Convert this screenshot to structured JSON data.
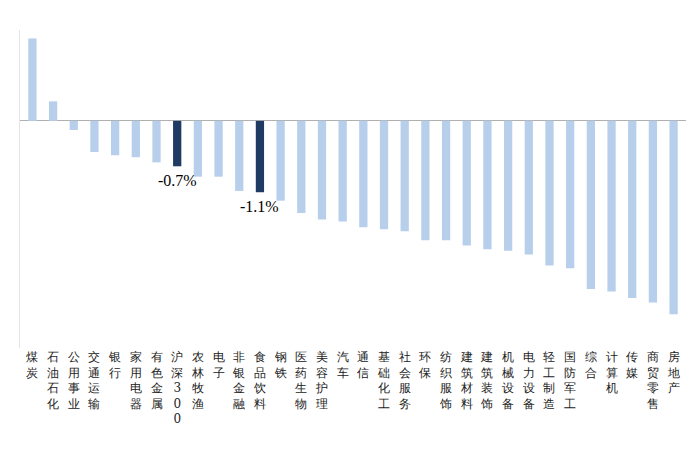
{
  "chart_data": {
    "type": "bar",
    "categories": [
      "煤炭",
      "石油石化",
      "公用事业",
      "交通运输",
      "银行",
      "家用电器",
      "有色金属",
      "沪深300",
      "农林牧渔",
      "电子",
      "非银金融",
      "食品饮料",
      "钢铁",
      "医药生物",
      "美容护理",
      "汽车",
      "通信",
      "基础化工",
      "社会服务",
      "环保",
      "纺织服饰",
      "建筑材料",
      "建筑装饰",
      "机械设备",
      "电力设备",
      "轻工制造",
      "国防军工",
      "综合",
      "计算机",
      "传媒",
      "商贸零售",
      "房地产"
    ],
    "values": [
      1.27,
      0.3,
      -0.14,
      -0.48,
      -0.53,
      -0.56,
      -0.64,
      -0.7,
      -0.86,
      -0.86,
      -1.08,
      -1.1,
      -1.23,
      -1.42,
      -1.52,
      -1.55,
      -1.64,
      -1.67,
      -1.7,
      -1.84,
      -1.84,
      -1.92,
      -1.98,
      -2.0,
      -2.06,
      -2.23,
      -2.27,
      -2.59,
      -2.63,
      -2.73,
      -2.8,
      -2.98
    ],
    "value_labels": [
      null,
      null,
      null,
      null,
      null,
      null,
      null,
      "-0.7%",
      null,
      null,
      null,
      "-1.1%",
      null,
      null,
      null,
      null,
      null,
      null,
      null,
      null,
      null,
      null,
      null,
      null,
      null,
      null,
      null,
      null,
      null,
      null,
      null,
      null
    ],
    "colors": [
      "#b7cfeb",
      "#b7cfeb",
      "#b7cfeb",
      "#b7cfeb",
      "#b7cfeb",
      "#b7cfeb",
      "#b7cfeb",
      "#1f3b64",
      "#b7cfeb",
      "#b7cfeb",
      "#b7cfeb",
      "#1f3b64",
      "#b7cfeb",
      "#b7cfeb",
      "#b7cfeb",
      "#b7cfeb",
      "#b7cfeb",
      "#b7cfeb",
      "#b7cfeb",
      "#b7cfeb",
      "#b7cfeb",
      "#b7cfeb",
      "#b7cfeb",
      "#b7cfeb",
      "#b7cfeb",
      "#b7cfeb",
      "#b7cfeb",
      "#b7cfeb",
      "#b7cfeb",
      "#b7cfeb",
      "#b7cfeb",
      "#b7cfeb"
    ],
    "ylim": [
      -3.5,
      1.4
    ],
    "yticks": [],
    "grid": false,
    "tick_labels": "x",
    "data_labels": true
  }
}
